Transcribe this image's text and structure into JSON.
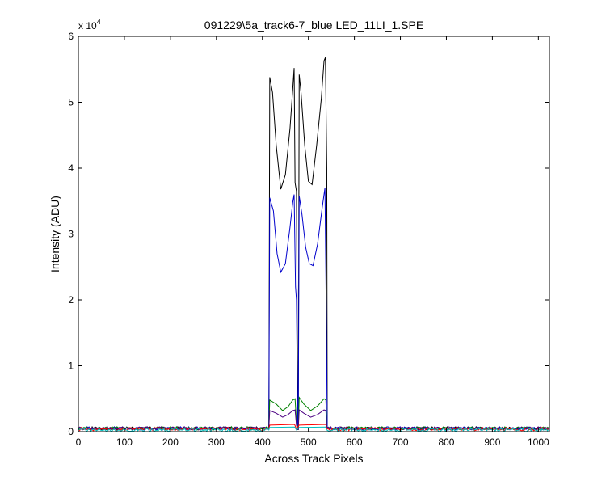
{
  "chart_data": {
    "type": "line",
    "title": "091229\\5a_track6-7_blue LED_11LI_1.SPE",
    "xlabel": "Across Track Pixels",
    "ylabel": "Intensity (ADU)",
    "y_multiplier": {
      "base": "x 10",
      "exponent": "4"
    },
    "xlim": [
      0,
      1024
    ],
    "ylim": [
      0,
      60000
    ],
    "x_ticks": [
      0,
      100,
      200,
      300,
      400,
      500,
      600,
      700,
      800,
      900,
      1000
    ],
    "y_ticks": [
      0,
      10000,
      20000,
      30000,
      40000,
      50000,
      60000
    ],
    "x_tick_labels": [
      "0",
      "100",
      "200",
      "300",
      "400",
      "500",
      "600",
      "700",
      "800",
      "900",
      "1000"
    ],
    "y_tick_labels": [
      "0",
      "1",
      "2",
      "3",
      "4",
      "5",
      "6"
    ],
    "grid": false,
    "legend": "none",
    "series": [
      {
        "color": "#000000",
        "points": [
          [
            0,
            500
          ],
          [
            410,
            500
          ],
          [
            414,
            500
          ],
          [
            416,
            53800
          ],
          [
            422,
            51500
          ],
          [
            430,
            43500
          ],
          [
            440,
            36800
          ],
          [
            450,
            39000
          ],
          [
            460,
            46000
          ],
          [
            466,
            52000
          ],
          [
            469,
            55200
          ],
          [
            471,
            37800
          ],
          [
            474,
            36500
          ],
          [
            477,
            300
          ],
          [
            478,
            300
          ],
          [
            480,
            54200
          ],
          [
            484,
            51500
          ],
          [
            492,
            43500
          ],
          [
            500,
            38000
          ],
          [
            508,
            37500
          ],
          [
            518,
            43500
          ],
          [
            528,
            50500
          ],
          [
            534,
            56300
          ],
          [
            537,
            56800
          ],
          [
            540,
            40000
          ],
          [
            541,
            500
          ],
          [
            1024,
            500
          ]
        ]
      },
      {
        "color": "#0000cc",
        "points": [
          [
            0,
            500
          ],
          [
            410,
            500
          ],
          [
            414,
            500
          ],
          [
            416,
            35500
          ],
          [
            424,
            33500
          ],
          [
            432,
            27000
          ],
          [
            440,
            24200
          ],
          [
            450,
            25500
          ],
          [
            460,
            31000
          ],
          [
            466,
            34800
          ],
          [
            469,
            36000
          ],
          [
            472,
            22000
          ],
          [
            474,
            20000
          ],
          [
            477,
            300
          ],
          [
            478,
            300
          ],
          [
            480,
            35800
          ],
          [
            486,
            33000
          ],
          [
            494,
            28000
          ],
          [
            502,
            25500
          ],
          [
            510,
            25200
          ],
          [
            520,
            28500
          ],
          [
            530,
            34000
          ],
          [
            536,
            37000
          ],
          [
            539,
            17000
          ],
          [
            541,
            500
          ],
          [
            1024,
            500
          ]
        ]
      },
      {
        "color": "#008000",
        "points": [
          [
            0,
            500
          ],
          [
            412,
            500
          ],
          [
            414,
            500
          ],
          [
            416,
            4800
          ],
          [
            430,
            4200
          ],
          [
            444,
            3200
          ],
          [
            456,
            3800
          ],
          [
            466,
            4800
          ],
          [
            471,
            5000
          ],
          [
            474,
            1500
          ],
          [
            477,
            300
          ],
          [
            478,
            300
          ],
          [
            480,
            5200
          ],
          [
            490,
            4200
          ],
          [
            505,
            3200
          ],
          [
            520,
            3900
          ],
          [
            534,
            5000
          ],
          [
            538,
            4800
          ],
          [
            540,
            500
          ],
          [
            1024,
            500
          ]
        ]
      },
      {
        "color": "#4b0082",
        "points": [
          [
            0,
            500
          ],
          [
            412,
            500
          ],
          [
            414,
            500
          ],
          [
            416,
            3200
          ],
          [
            430,
            2800
          ],
          [
            444,
            2200
          ],
          [
            456,
            2600
          ],
          [
            466,
            3200
          ],
          [
            471,
            3300
          ],
          [
            474,
            1000
          ],
          [
            477,
            300
          ],
          [
            478,
            300
          ],
          [
            480,
            3300
          ],
          [
            490,
            2800
          ],
          [
            505,
            2200
          ],
          [
            520,
            2600
          ],
          [
            534,
            3300
          ],
          [
            538,
            3200
          ],
          [
            540,
            500
          ],
          [
            1024,
            500
          ]
        ]
      },
      {
        "color": "#ff0000",
        "points": [
          [
            0,
            400
          ],
          [
            414,
            400
          ],
          [
            416,
            1000
          ],
          [
            470,
            1100
          ],
          [
            474,
            400
          ],
          [
            480,
            1000
          ],
          [
            538,
            1100
          ],
          [
            540,
            400
          ],
          [
            1024,
            400
          ]
        ]
      },
      {
        "color": "#00bfbf",
        "points": [
          [
            0,
            250
          ],
          [
            414,
            250
          ],
          [
            416,
            650
          ],
          [
            470,
            700
          ],
          [
            474,
            250
          ],
          [
            480,
            650
          ],
          [
            538,
            700
          ],
          [
            540,
            250
          ],
          [
            1024,
            250
          ]
        ]
      }
    ]
  },
  "colors": {
    "axes": "#000000",
    "background": "#ffffff"
  }
}
